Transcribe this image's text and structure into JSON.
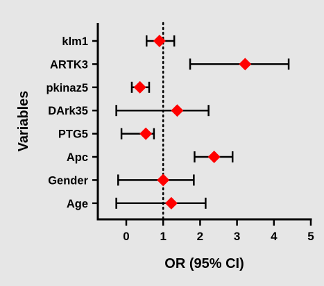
{
  "chart_data": {
    "type": "forest",
    "title": "",
    "xlabel": "OR (95% CI)",
    "ylabel": "Variables",
    "xlim": [
      -0.8,
      5
    ],
    "x_ticks": [
      0,
      1,
      2,
      3,
      4,
      5
    ],
    "x_tick_labels": [
      "0",
      "1",
      "2",
      "3",
      "4",
      "5"
    ],
    "reference_line": 1,
    "reference_line_style": "dotted",
    "grid": false,
    "marker": "diamond",
    "marker_color": "#ff0000",
    "variables": [
      "klm1",
      "ARTK3",
      "pkinaz5",
      "DArk35",
      "PTG5",
      "Apc",
      "Gender",
      "Age"
    ],
    "or": [
      0.9,
      3.22,
      0.37,
      1.38,
      0.53,
      2.38,
      1.0,
      1.22
    ],
    "ci_low": [
      0.55,
      1.73,
      0.15,
      -0.27,
      -0.13,
      1.85,
      -0.22,
      -0.27
    ],
    "ci_high": [
      1.3,
      4.4,
      0.62,
      2.23,
      0.75,
      2.88,
      1.83,
      2.15
    ]
  }
}
